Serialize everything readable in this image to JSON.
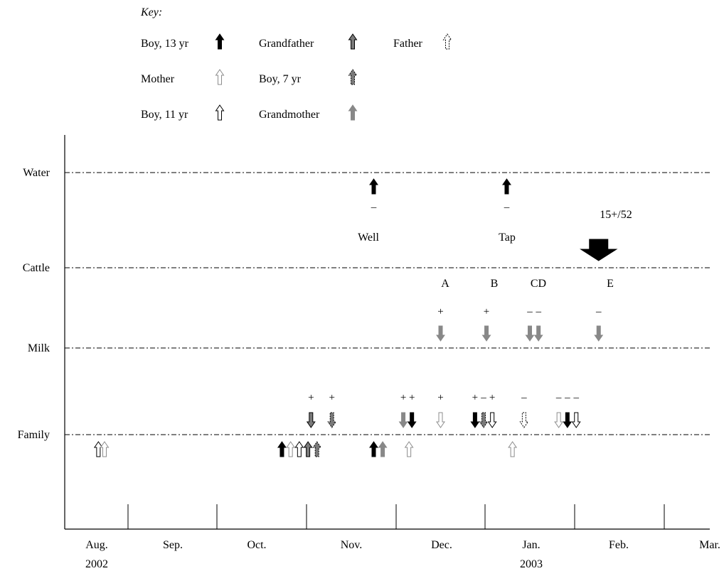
{
  "key": {
    "title": "Key:",
    "entries": [
      {
        "id": "boy13",
        "label": "Boy, 13 yr",
        "fill": "#000000",
        "stroke": "#000000",
        "dash": false
      },
      {
        "id": "grandfather",
        "label": "Grandfather",
        "fill": "#7a7a7a",
        "stroke": "#000000",
        "dash": false
      },
      {
        "id": "father",
        "label": "Father",
        "fill": "#ffffff",
        "stroke": "#000000",
        "dash": true
      },
      {
        "id": "mother",
        "label": "Mother",
        "fill": "#ffffff",
        "stroke": "#8c8c8c",
        "dash": false
      },
      {
        "id": "boy7",
        "label": "Boy, 7 yr",
        "fill": "#7a7a7a",
        "stroke": "#000000",
        "dash": true
      },
      {
        "id": "boy11",
        "label": "Boy, 11 yr",
        "fill": "#ffffff",
        "stroke": "#000000",
        "dash": false
      },
      {
        "id": "grandmother",
        "label": "Grandmother",
        "fill": "#888888",
        "stroke": "#888888",
        "dash": false
      }
    ]
  },
  "rows": [
    "Water",
    "Cattle",
    "Milk",
    "Family"
  ],
  "months": [
    "Aug.",
    "Sep.",
    "Oct.",
    "Nov.",
    "Dec.",
    "Jan.",
    "Feb.",
    "Mar."
  ],
  "years": [
    {
      "month": "Aug.",
      "label": "2002"
    },
    {
      "month": "Jan.",
      "label": "2003"
    }
  ],
  "colors": {
    "black": "#000000",
    "gray": "#7a7a7a",
    "light_gray": "#8c8c8c",
    "white": "#ffffff"
  },
  "annotations": {
    "water": [
      "Well",
      "Tap"
    ],
    "cattle": [
      "15+/52"
    ],
    "milk_labels": [
      "A",
      "B",
      "CD",
      "E"
    ]
  },
  "events": [
    {
      "row": "Water",
      "date": "2002-11-23",
      "who": "boy13",
      "dir": "up",
      "sign": "–"
    },
    {
      "row": "Water",
      "date": "2003-01-08",
      "who": "boy13",
      "dir": "up",
      "sign": "–"
    },
    {
      "row": "Cattle",
      "date": "2003-02-08",
      "who": "big",
      "dir": "down",
      "sign": ""
    },
    {
      "row": "Milk",
      "date": "2002-12-16",
      "who": "grandmother",
      "dir": "down",
      "sign": "+"
    },
    {
      "row": "Milk",
      "date": "2003-01-01",
      "who": "grandmother",
      "dir": "down",
      "sign": "+"
    },
    {
      "row": "Milk",
      "date": "2003-01-16",
      "who": "grandmother",
      "dir": "down",
      "sign": "–"
    },
    {
      "row": "Milk",
      "date": "2003-01-19",
      "who": "grandmother",
      "dir": "down",
      "sign": "–"
    },
    {
      "row": "Milk",
      "date": "2003-02-08",
      "who": "grandmother",
      "dir": "down",
      "sign": "–"
    },
    {
      "row": "Family",
      "date": "2002-11-02",
      "who": "grandfather",
      "dir": "down",
      "sign": "+"
    },
    {
      "row": "Family",
      "date": "2002-11-09",
      "who": "boy7",
      "dir": "down",
      "sign": "+"
    },
    {
      "row": "Family",
      "date": "2002-12-03",
      "who": "grandmother",
      "dir": "down",
      "sign": "+"
    },
    {
      "row": "Family",
      "date": "2002-12-06",
      "who": "boy13",
      "dir": "down",
      "sign": "+"
    },
    {
      "row": "Family",
      "date": "2002-12-16",
      "who": "mother",
      "dir": "down",
      "sign": "+"
    },
    {
      "row": "Family",
      "date": "2002-12-28",
      "who": "boy13",
      "dir": "down",
      "sign": "+"
    },
    {
      "row": "Family",
      "date": "2002-12-31",
      "who": "boy7",
      "dir": "down",
      "sign": "–"
    },
    {
      "row": "Family",
      "date": "2003-01-03",
      "who": "boy11",
      "dir": "down",
      "sign": "+"
    },
    {
      "row": "Family",
      "date": "2003-01-14",
      "who": "father",
      "dir": "down",
      "sign": "–"
    },
    {
      "row": "Family",
      "date": "2003-01-26",
      "who": "mother",
      "dir": "down",
      "sign": "–"
    },
    {
      "row": "Family",
      "date": "2003-01-29",
      "who": "boy13",
      "dir": "down",
      "sign": "–"
    },
    {
      "row": "Family",
      "date": "2003-02-01",
      "who": "boy11",
      "dir": "down",
      "sign": "–"
    },
    {
      "row": "Family",
      "date": "2002-08-17",
      "who": "boy11",
      "dir": "up",
      "sign": ""
    },
    {
      "row": "Family",
      "date": "2002-08-20",
      "who": "mother",
      "dir": "up",
      "sign": ""
    },
    {
      "row": "Family",
      "date": "2002-10-23",
      "who": "boy13",
      "dir": "up",
      "sign": ""
    },
    {
      "row": "Family",
      "date": "2002-10-26",
      "who": "mother",
      "dir": "up",
      "sign": ""
    },
    {
      "row": "Family",
      "date": "2002-10-29",
      "who": "boy11",
      "dir": "up",
      "sign": ""
    },
    {
      "row": "Family",
      "date": "2002-11-01",
      "who": "grandfather",
      "dir": "up",
      "sign": ""
    },
    {
      "row": "Family",
      "date": "2002-11-04",
      "who": "boy7",
      "dir": "up",
      "sign": ""
    },
    {
      "row": "Family",
      "date": "2002-11-23",
      "who": "boy13",
      "dir": "up",
      "sign": ""
    },
    {
      "row": "Family",
      "date": "2002-11-26",
      "who": "grandmother",
      "dir": "up",
      "sign": ""
    },
    {
      "row": "Family",
      "date": "2002-12-05",
      "who": "mother",
      "dir": "up",
      "sign": ""
    },
    {
      "row": "Family",
      "date": "2003-01-10",
      "who": "mother",
      "dir": "up",
      "sign": ""
    }
  ]
}
